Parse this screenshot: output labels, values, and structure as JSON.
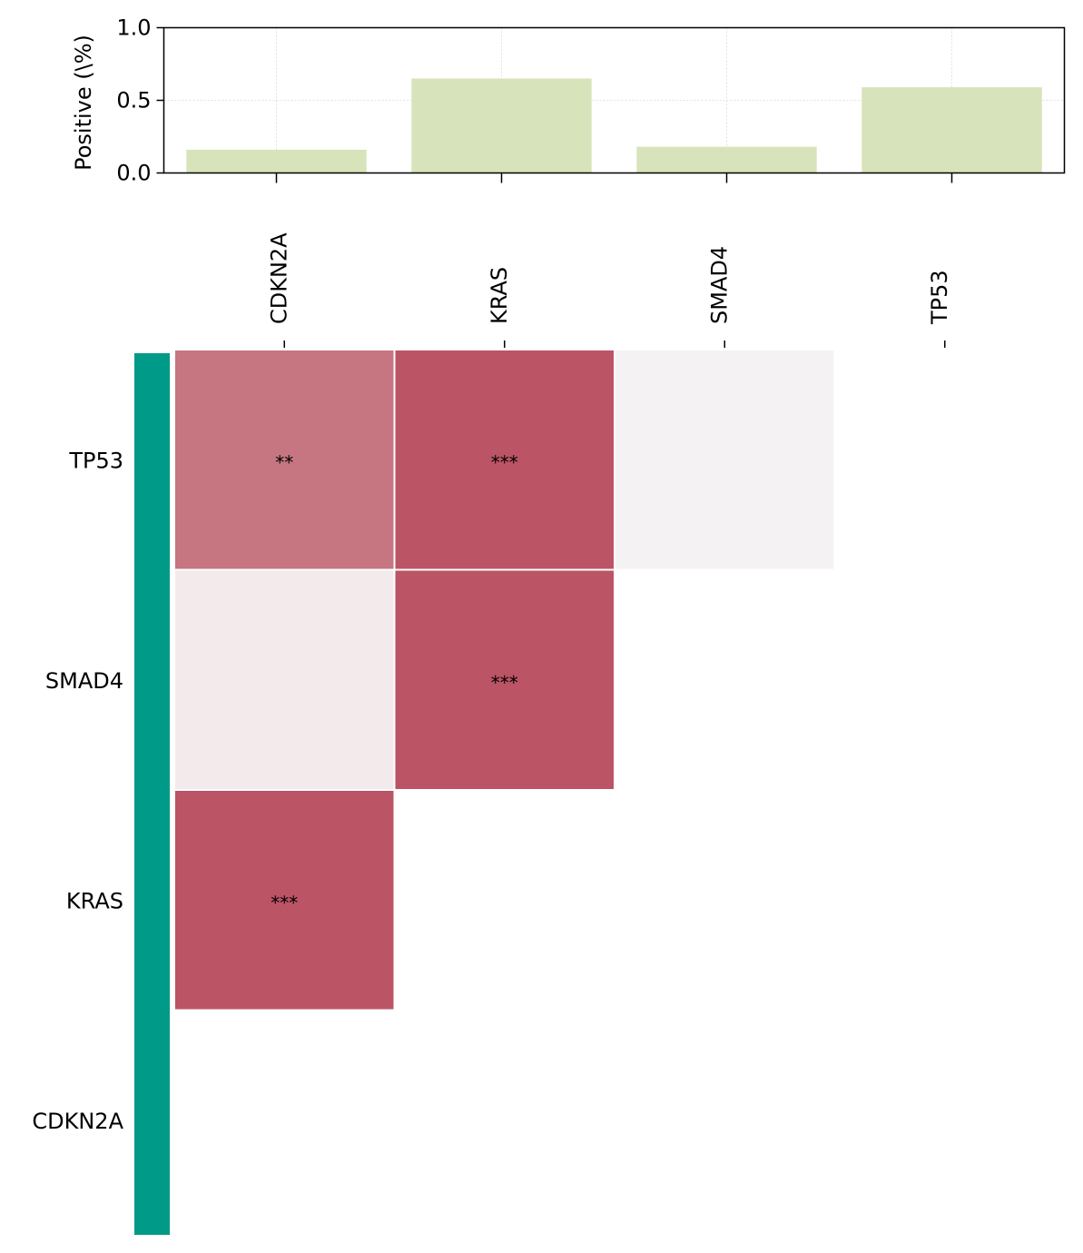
{
  "chart_data": [
    {
      "type": "bar",
      "categories": [
        "CDKN2A",
        "KRAS",
        "SMAD4",
        "TP53"
      ],
      "values": [
        0.16,
        0.65,
        0.18,
        0.59
      ],
      "ylabel": "Positive (\\%)",
      "ylim": [
        0,
        1.0
      ],
      "yticks": [
        "0.0",
        "0.5",
        "1.0"
      ],
      "grid": true,
      "bar_color": "#d7e3ba"
    },
    {
      "type": "heatmap",
      "x_categories": [
        "CDKN2A",
        "KRAS",
        "SMAD4",
        "TP53"
      ],
      "y_categories": [
        "TP53",
        "SMAD4",
        "KRAS",
        "CDKN2A"
      ],
      "cells": [
        {
          "row": "TP53",
          "col": "CDKN2A",
          "color": "#c57681",
          "label": "**"
        },
        {
          "row": "TP53",
          "col": "KRAS",
          "color": "#bb5465",
          "label": "***"
        },
        {
          "row": "TP53",
          "col": "SMAD4",
          "color": "#f5f2f3",
          "label": ""
        },
        {
          "row": "SMAD4",
          "col": "CDKN2A",
          "color": "#f2eaeb",
          "label": ""
        },
        {
          "row": "SMAD4",
          "col": "KRAS",
          "color": "#bb5465",
          "label": "***"
        },
        {
          "row": "KRAS",
          "col": "CDKN2A",
          "color": "#bb5465",
          "label": "***"
        }
      ],
      "row_annotation_color": "#009a88"
    }
  ]
}
